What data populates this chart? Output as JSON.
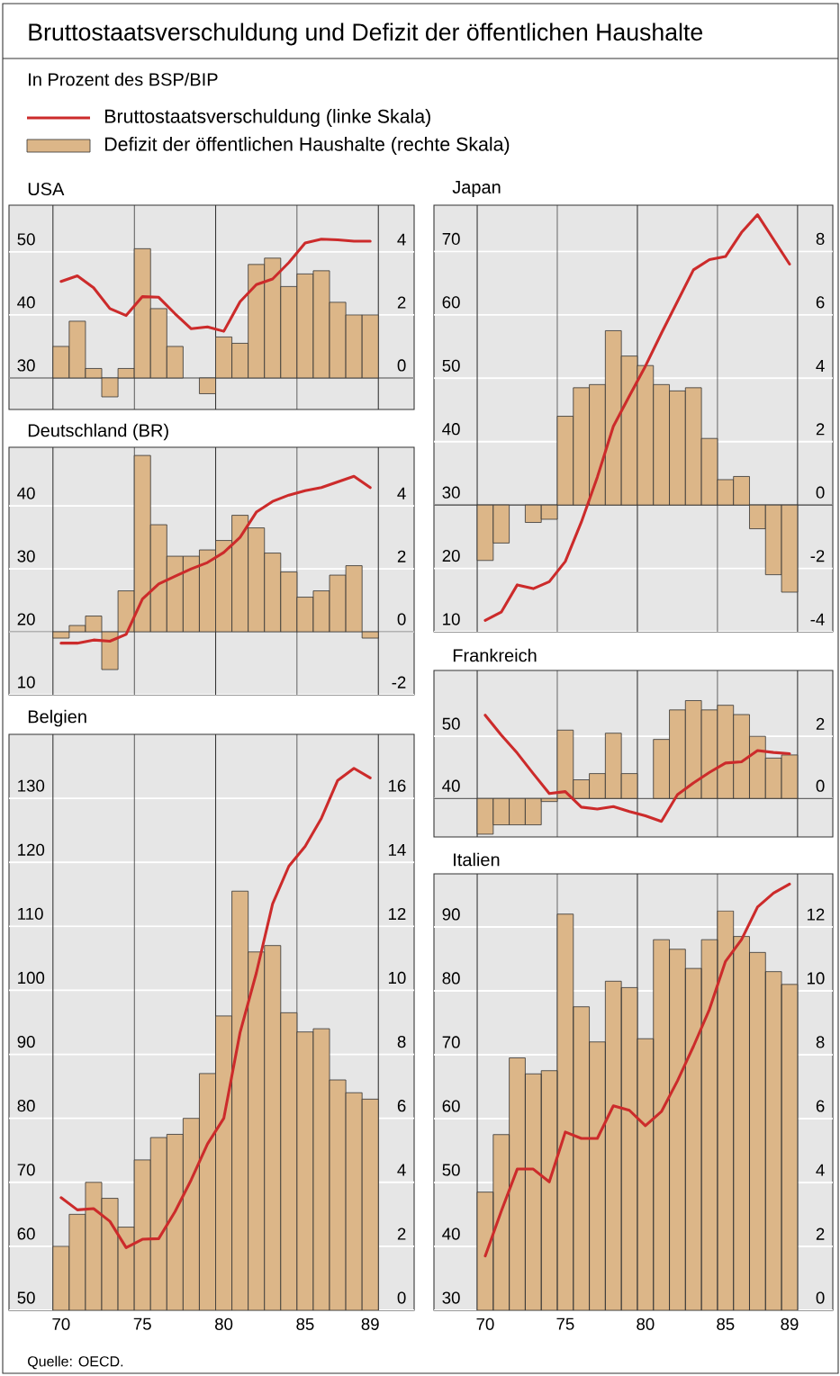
{
  "chart_data": [
    {
      "type": "other",
      "title": "Bruttostaatsverschuldung und Defizit der öffentlichen Haushalte",
      "subtitle": "In Prozent des BSP/BIP",
      "annotations": [
        "Quelle: OECD."
      ]
    },
    {
      "type": "bar",
      "title": "USA",
      "legend": "top",
      "grid": "y",
      "tick_labels": "y",
      "x": [
        70,
        71,
        72,
        73,
        74,
        75,
        76,
        77,
        78,
        79,
        80,
        81,
        82,
        83,
        84,
        85,
        86,
        87,
        88,
        89
      ],
      "xlim": [
        66.8,
        91.7
      ],
      "xticks": [
        70,
        75,
        80,
        85,
        89
      ],
      "ylim": [
        25,
        57.4
      ],
      "yticks": [
        30,
        40,
        50
      ],
      "y2lim": [
        -1,
        5.48
      ],
      "y2ticks": [
        0,
        2,
        4
      ],
      "ref_lines": [
        {
          "axis": "x",
          "value": 69.5,
          "color": "#333333"
        },
        {
          "axis": "x",
          "value": 74.5,
          "color": "#333333"
        },
        {
          "axis": "x",
          "value": 79.5,
          "color": "#333333"
        },
        {
          "axis": "x",
          "value": 84.5,
          "color": "#333333"
        },
        {
          "axis": "x",
          "value": 89.5,
          "color": "#333333"
        },
        {
          "axis": "y2",
          "value": 0,
          "color": "#333333"
        }
      ],
      "series": [
        {
          "name": "Defizit der öffentlichen Haushalte (rechte Skala)",
          "type": "bar",
          "axis": "y2",
          "color": "#dcb688",
          "values": [
            1.0,
            1.8,
            0.3,
            -0.6,
            0.3,
            4.1,
            2.2,
            1.0,
            0,
            -0.5,
            1.3,
            1.1,
            3.6,
            3.8,
            2.9,
            3.3,
            3.4,
            2.4,
            2.0,
            2.0
          ]
        },
        {
          "name": "Bruttostaatsverschuldung (linke Skala)",
          "type": "line",
          "color": "#cc2b2b",
          "values": [
            45.3,
            46.2,
            44.3,
            41.0,
            39.9,
            42.9,
            42.8,
            40.2,
            37.8,
            38.1,
            37.4,
            42.1,
            44.8,
            45.7,
            48.3,
            51.4,
            52.0,
            51.9,
            51.7,
            51.7
          ]
        }
      ]
    },
    {
      "type": "bar",
      "title": "Deutschland (BR)",
      "grid": "y",
      "tick_labels": "y",
      "x": [
        70,
        71,
        72,
        73,
        74,
        75,
        76,
        77,
        78,
        79,
        80,
        81,
        82,
        83,
        84,
        85,
        86,
        87,
        88,
        89
      ],
      "xlim": [
        66.8,
        91.7
      ],
      "xticks": [
        70,
        75,
        80,
        85,
        89
      ],
      "ylim": [
        10,
        49.3
      ],
      "yticks": [
        10,
        20,
        30,
        40
      ],
      "y2lim": [
        -2,
        5.86
      ],
      "y2ticks": [
        -2,
        0,
        2,
        4
      ],
      "ref_lines": [
        {
          "axis": "x",
          "value": 69.5,
          "color": "#333333"
        },
        {
          "axis": "x",
          "value": 74.5,
          "color": "#333333"
        },
        {
          "axis": "x",
          "value": 79.5,
          "color": "#333333"
        },
        {
          "axis": "x",
          "value": 84.5,
          "color": "#333333"
        },
        {
          "axis": "x",
          "value": 89.5,
          "color": "#333333"
        },
        {
          "axis": "y2",
          "value": 0,
          "color": "#333333"
        }
      ],
      "series": [
        {
          "type": "bar",
          "axis": "y2",
          "color": "#dcb688",
          "values": [
            -0.2,
            0.2,
            0.5,
            -1.2,
            1.3,
            5.6,
            3.4,
            2.4,
            2.4,
            2.6,
            2.9,
            3.7,
            3.3,
            2.5,
            1.9,
            1.1,
            1.3,
            1.8,
            2.1,
            -0.2
          ]
        },
        {
          "type": "line",
          "color": "#cc2b2b",
          "values": [
            18.2,
            18.2,
            18.7,
            18.5,
            19.6,
            25.2,
            27.6,
            28.8,
            30.0,
            31.0,
            32.6,
            35.0,
            39.0,
            40.7,
            41.7,
            42.4,
            42.9,
            43.8,
            44.7,
            42.9
          ]
        }
      ]
    },
    {
      "type": "bar",
      "title": "Belgien",
      "grid": "y",
      "x": [
        70,
        71,
        72,
        73,
        74,
        75,
        76,
        77,
        78,
        79,
        80,
        81,
        82,
        83,
        84,
        85,
        86,
        87,
        88,
        89
      ],
      "xlim": [
        66.8,
        91.7
      ],
      "xticks": [
        70,
        75,
        80,
        85,
        89
      ],
      "ylim": [
        50,
        140
      ],
      "yticks": [
        50,
        60,
        70,
        80,
        90,
        100,
        110,
        120,
        130
      ],
      "y2lim": [
        0,
        18
      ],
      "y2ticks": [
        0,
        2,
        4,
        6,
        8,
        10,
        12,
        14,
        16
      ],
      "ref_lines": [
        {
          "axis": "x",
          "value": 69.5,
          "color": "#333333"
        },
        {
          "axis": "x",
          "value": 74.5,
          "color": "#333333"
        },
        {
          "axis": "x",
          "value": 79.5,
          "color": "#333333"
        },
        {
          "axis": "x",
          "value": 84.5,
          "color": "#333333"
        },
        {
          "axis": "x",
          "value": 89.5,
          "color": "#333333"
        }
      ],
      "series": [
        {
          "type": "bar",
          "axis": "y2",
          "color": "#dcb688",
          "values": [
            2.0,
            3.0,
            4.0,
            3.5,
            2.6,
            4.7,
            5.4,
            5.5,
            6.0,
            7.4,
            9.2,
            13.1,
            11.2,
            11.4,
            9.3,
            8.7,
            8.8,
            7.2,
            6.8,
            6.6
          ]
        },
        {
          "type": "line",
          "color": "#cc2b2b",
          "values": [
            67.6,
            65.7,
            65.9,
            63.9,
            59.8,
            61.1,
            61.2,
            65.4,
            70.4,
            76.0,
            80.0,
            93.4,
            102.7,
            113.5,
            119.4,
            122.5,
            126.9,
            132.8,
            134.7,
            133.2
          ]
        }
      ]
    },
    {
      "type": "bar",
      "title": "Japan",
      "grid": "y",
      "tick_labels": "y",
      "x": [
        70,
        71,
        72,
        73,
        74,
        75,
        76,
        77,
        78,
        79,
        80,
        81,
        82,
        83,
        84,
        85,
        86,
        87,
        88,
        89
      ],
      "xlim": [
        66.8,
        91.7
      ],
      "xticks": [
        70,
        75,
        80,
        85,
        89
      ],
      "ylim": [
        10,
        77.3
      ],
      "yticks": [
        10,
        20,
        30,
        40,
        50,
        60,
        70
      ],
      "y2lim": [
        -4,
        9.46
      ],
      "y2ticks": [
        -4,
        -2,
        0,
        2,
        4,
        6,
        8
      ],
      "ref_lines": [
        {
          "axis": "x",
          "value": 69.5,
          "color": "#333333"
        },
        {
          "axis": "x",
          "value": 74.5,
          "color": "#333333"
        },
        {
          "axis": "x",
          "value": 79.5,
          "color": "#333333"
        },
        {
          "axis": "x",
          "value": 84.5,
          "color": "#333333"
        },
        {
          "axis": "x",
          "value": 89.5,
          "color": "#333333"
        },
        {
          "axis": "y2",
          "value": 0,
          "color": "#333333"
        }
      ],
      "series": [
        {
          "type": "bar",
          "axis": "y2",
          "color": "#dcb688",
          "values": [
            -1.75,
            -1.2,
            0,
            -0.55,
            -0.45,
            2.8,
            3.7,
            3.8,
            5.5,
            4.7,
            4.4,
            3.8,
            3.6,
            3.7,
            2.1,
            0.8,
            0.9,
            -0.75,
            -2.2,
            -2.75
          ]
        },
        {
          "type": "line",
          "color": "#cc2b2b",
          "values": [
            11.8,
            13.1,
            17.4,
            16.8,
            17.9,
            21.1,
            27.3,
            34.4,
            42.4,
            47.2,
            51.9,
            57.1,
            62.1,
            67.1,
            68.7,
            69.2,
            73.0,
            75.8,
            71.9,
            68.0
          ]
        }
      ]
    },
    {
      "type": "bar",
      "title": "Frankreich",
      "grid": "y",
      "tick_labels": "y",
      "x": [
        70,
        71,
        72,
        73,
        74,
        75,
        76,
        77,
        78,
        79,
        80,
        81,
        82,
        83,
        84,
        85,
        86,
        87,
        88,
        89
      ],
      "xlim": [
        66.8,
        91.7
      ],
      "xticks": [
        70,
        75,
        80,
        85,
        89
      ],
      "ylim": [
        33.8,
        60.6
      ],
      "yticks": [
        40,
        50
      ],
      "y2lim": [
        -1.24,
        4.12
      ],
      "y2ticks": [
        0,
        2
      ],
      "ref_lines": [
        {
          "axis": "x",
          "value": 69.5,
          "color": "#333333"
        },
        {
          "axis": "x",
          "value": 74.5,
          "color": "#333333"
        },
        {
          "axis": "x",
          "value": 79.5,
          "color": "#333333"
        },
        {
          "axis": "x",
          "value": 84.5,
          "color": "#333333"
        },
        {
          "axis": "x",
          "value": 89.5,
          "color": "#333333"
        },
        {
          "axis": "y2",
          "value": 0,
          "color": "#333333"
        }
      ],
      "series": [
        {
          "type": "bar",
          "axis": "y2",
          "color": "#dcb688",
          "values": [
            -1.15,
            -0.85,
            -0.85,
            -0.85,
            -0.1,
            2.2,
            0.6,
            0.8,
            2.1,
            0.8,
            0,
            1.9,
            2.85,
            3.15,
            2.85,
            3.0,
            2.7,
            2.0,
            1.3,
            1.4
          ]
        },
        {
          "type": "line",
          "color": "#cc2b2b",
          "values": [
            53.4,
            50.2,
            47.3,
            44.0,
            40.8,
            41.1,
            38.6,
            38.3,
            38.7,
            37.9,
            37.2,
            36.3,
            40.6,
            42.5,
            44.2,
            45.7,
            45.9,
            47.7,
            47.4,
            47.2
          ]
        }
      ]
    },
    {
      "type": "bar",
      "title": "Italien",
      "grid": "y",
      "x": [
        70,
        71,
        72,
        73,
        74,
        75,
        76,
        77,
        78,
        79,
        80,
        81,
        82,
        83,
        84,
        85,
        86,
        87,
        88,
        89
      ],
      "xlim": [
        66.8,
        91.7
      ],
      "xticks": [
        70,
        75,
        80,
        85,
        89
      ],
      "ylim": [
        30,
        98.3
      ],
      "yticks": [
        30,
        40,
        50,
        60,
        70,
        80,
        90
      ],
      "y2lim": [
        0,
        13.66
      ],
      "y2ticks": [
        0,
        2,
        4,
        6,
        8,
        10,
        12
      ],
      "ref_lines": [
        {
          "axis": "x",
          "value": 69.5,
          "color": "#333333"
        },
        {
          "axis": "x",
          "value": 74.5,
          "color": "#333333"
        },
        {
          "axis": "x",
          "value": 79.5,
          "color": "#333333"
        },
        {
          "axis": "x",
          "value": 84.5,
          "color": "#333333"
        },
        {
          "axis": "x",
          "value": 89.5,
          "color": "#333333"
        }
      ],
      "series": [
        {
          "type": "bar",
          "axis": "y2",
          "color": "#dcb688",
          "values": [
            3.7,
            5.5,
            7.9,
            7.4,
            7.5,
            12.4,
            9.5,
            8.4,
            10.3,
            10.1,
            8.5,
            11.6,
            11.3,
            10.7,
            11.6,
            12.5,
            11.7,
            11.2,
            10.6,
            10.2
          ]
        },
        {
          "type": "line",
          "color": "#cc2b2b",
          "values": [
            38.5,
            45.5,
            52.1,
            52.1,
            50.1,
            57.9,
            56.9,
            56.9,
            62.0,
            61.3,
            58.9,
            61.1,
            65.9,
            71.3,
            77.1,
            84.6,
            88.0,
            93.1,
            95.3,
            96.7
          ]
        }
      ]
    }
  ]
}
